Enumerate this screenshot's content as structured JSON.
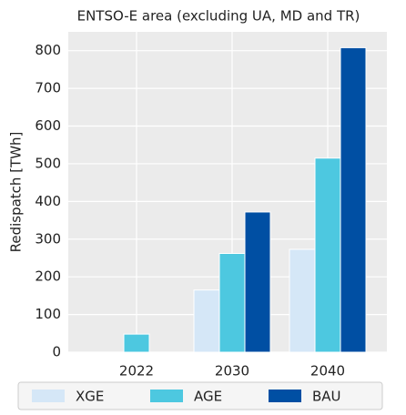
{
  "chart_data": {
    "type": "bar",
    "title": "ENTSO-E area (excluding UA, MD and TR)",
    "ylabel": "Redispatch [TWh]",
    "categories": [
      "2022",
      "2030",
      "2040"
    ],
    "series": [
      {
        "name": "XGE",
        "color": "#d5e7f7",
        "values": [
          0,
          165,
          273
        ]
      },
      {
        "name": "AGE",
        "color": "#4dc8e0",
        "values": [
          48,
          262,
          515
        ]
      },
      {
        "name": "BAU",
        "color": "#004fa3",
        "values": [
          0,
          372,
          808
        ]
      }
    ],
    "ylim": [
      0,
      850
    ],
    "yticks": [
      0,
      100,
      200,
      300,
      400,
      500,
      600,
      700,
      800
    ],
    "grid": true,
    "legend": "bottom"
  }
}
